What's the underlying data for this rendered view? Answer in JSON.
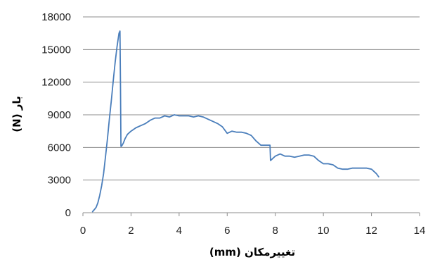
{
  "chart_data": {
    "type": "line",
    "xlabel": "تغییرمکان (mm)",
    "ylabel": "بار (N)",
    "xlim": [
      0,
      14
    ],
    "ylim": [
      0,
      18000
    ],
    "x_ticks": [
      "0",
      "2",
      "4",
      "6",
      "8",
      "10",
      "12",
      "14"
    ],
    "y_ticks": [
      "0",
      "3000",
      "6000",
      "9000",
      "12000",
      "15000",
      "18000"
    ],
    "grid": "horizontal",
    "legend": "none",
    "series_color": "#4a7ebb",
    "series": [
      {
        "x": [
          0.4,
          0.48,
          0.55,
          0.62,
          0.7,
          0.78,
          0.86,
          0.94,
          1.02,
          1.1,
          1.18,
          1.26,
          1.34,
          1.42,
          1.5,
          1.54,
          1.56,
          1.58,
          1.6,
          1.63,
          1.68,
          1.75,
          1.85,
          2.0,
          2.2,
          2.4,
          2.6,
          2.8,
          3.0,
          3.2,
          3.4,
          3.6,
          3.8,
          4.0,
          4.2,
          4.4,
          4.6,
          4.8,
          5.0,
          5.2,
          5.4,
          5.6,
          5.8,
          6.0,
          6.2,
          6.4,
          6.6,
          6.8,
          7.0,
          7.2,
          7.4,
          7.6,
          7.78,
          7.8,
          7.9,
          8.0,
          8.2,
          8.4,
          8.6,
          8.8,
          9.0,
          9.2,
          9.4,
          9.6,
          9.8,
          10.0,
          10.2,
          10.4,
          10.6,
          10.8,
          11.0,
          11.2,
          11.4,
          11.6,
          11.8,
          12.0,
          12.1,
          12.2,
          12.3
        ],
        "y": [
          100,
          300,
          500,
          900,
          1600,
          2500,
          3600,
          5200,
          6800,
          8600,
          10300,
          12100,
          13800,
          15300,
          16500,
          16700,
          12000,
          6100,
          6100,
          6200,
          6400,
          6800,
          7200,
          7500,
          7800,
          8000,
          8200,
          8500,
          8700,
          8700,
          8900,
          8800,
          9000,
          8900,
          8900,
          8900,
          8800,
          8900,
          8800,
          8600,
          8400,
          8200,
          7900,
          7300,
          7500,
          7400,
          7400,
          7300,
          7100,
          6600,
          6200,
          6200,
          6200,
          4800,
          5000,
          5200,
          5400,
          5200,
          5200,
          5100,
          5200,
          5300,
          5300,
          5200,
          4800,
          4500,
          4500,
          4400,
          4100,
          4000,
          4000,
          4100,
          4100,
          4100,
          4100,
          4000,
          3800,
          3600,
          3300
        ]
      }
    ]
  }
}
